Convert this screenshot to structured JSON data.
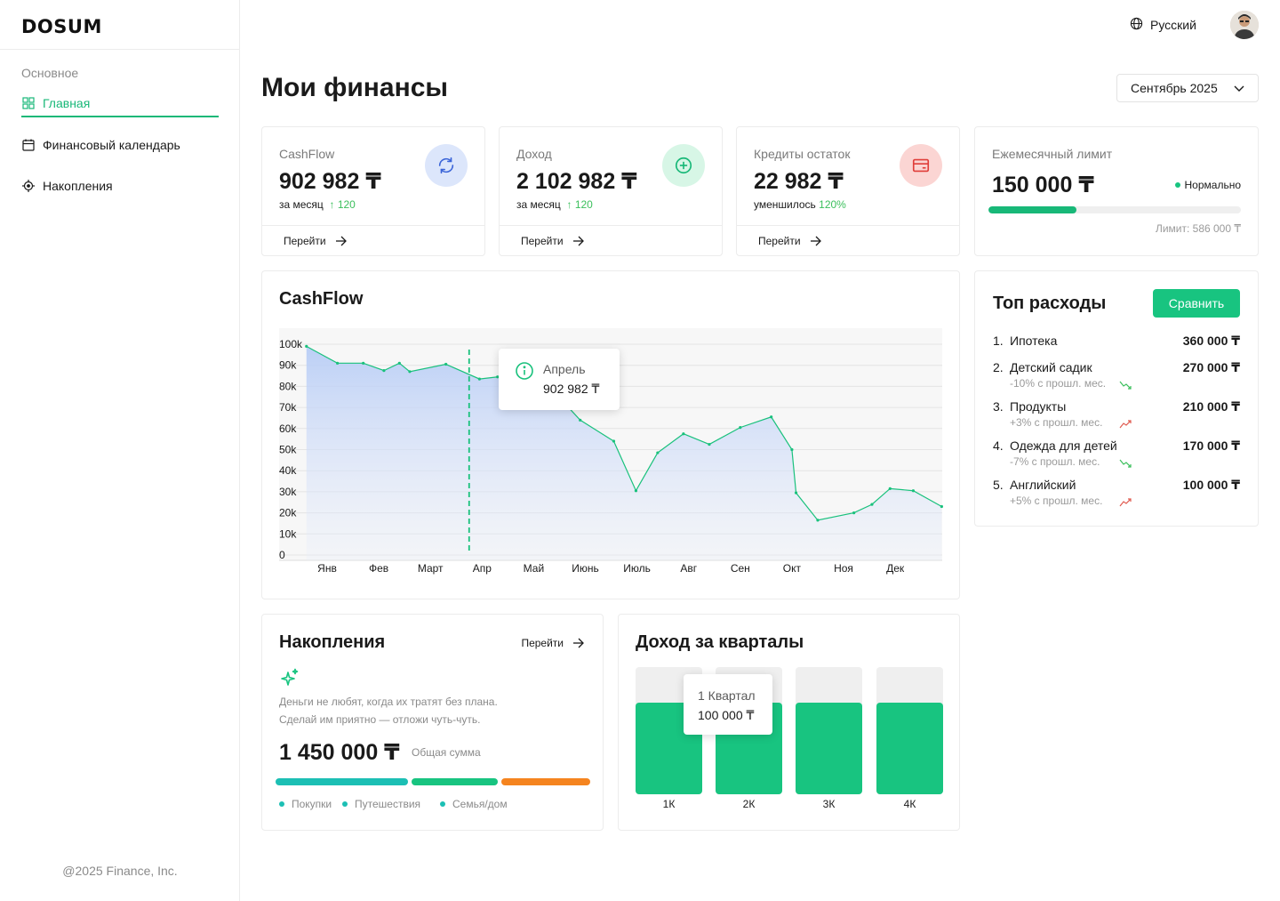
{
  "app": {
    "logo": "DOSUM"
  },
  "sidebar": {
    "section": "Основное",
    "items": [
      {
        "label": "Главная",
        "icon": "grid-icon",
        "active": true
      },
      {
        "label": "Финансовый календарь",
        "icon": "calendar-icon",
        "active": false
      },
      {
        "label": "Накопления",
        "icon": "target-icon",
        "active": false
      }
    ],
    "footer": "@2025 Finance, Inc."
  },
  "topbar": {
    "language": "Русский"
  },
  "page": {
    "title": "Мои финансы",
    "month": "Сентябрь 2025"
  },
  "stats": [
    {
      "label": "CashFlow",
      "value": "902 982 ₸",
      "sub": "за месяц",
      "change": "120",
      "link": "Перейти",
      "icon": "refresh-icon",
      "icon_bg": "#dce6fb",
      "icon_color": "#3a64d8"
    },
    {
      "label": "Доход",
      "value": "2 102 982 ₸",
      "sub": "за месяц",
      "change": "120",
      "link": "Перейти",
      "icon": "plus-circle-icon",
      "icon_bg": "#d7f6e6",
      "icon_color": "#18b878"
    },
    {
      "label": "Кредиты остаток",
      "value": "22 982 ₸",
      "sub": "уменшилось",
      "change": "120%",
      "link": "Перейти",
      "icon": "card-icon",
      "icon_bg": "#fbd5d3",
      "icon_color": "#e03e3a"
    }
  ],
  "limit": {
    "label": "Ежемесячный лимит",
    "value": "150 000 ₸",
    "status": "Нормально",
    "status_color": "#18c480",
    "progress": 0.35,
    "note": "Лимит: 586 000 ₸"
  },
  "cashflow_chart_title": "CashFlow",
  "chart_data": {
    "type": "area",
    "title": "CashFlow",
    "categories": [
      "Янв",
      "Фев",
      "Март",
      "Апр",
      "Май",
      "Июнь",
      "Июль",
      "Авг",
      "Сен",
      "Окт",
      "Ноя",
      "Дек"
    ],
    "y_ticks": [
      "100k",
      "90k",
      "80k",
      "70k",
      "60k",
      "50k",
      "40k",
      "30k",
      "20k",
      "10k",
      "0"
    ],
    "ylim": [
      0,
      100000
    ],
    "x_range": [
      -0.4,
      11.9
    ],
    "points": [
      [
        -0.4,
        99000
      ],
      [
        0.2,
        91000
      ],
      [
        0.7,
        91000
      ],
      [
        1.1,
        87500
      ],
      [
        1.4,
        91000
      ],
      [
        1.6,
        87000
      ],
      [
        2.3,
        90500
      ],
      [
        2.95,
        83500
      ],
      [
        3.3,
        84500
      ],
      [
        3.6,
        82000
      ],
      [
        3.9,
        80000
      ],
      [
        4.3,
        75000
      ],
      [
        4.6,
        72000
      ],
      [
        4.9,
        64000
      ],
      [
        5.55,
        54000
      ],
      [
        5.98,
        30500
      ],
      [
        6.4,
        48500
      ],
      [
        6.9,
        57500
      ],
      [
        7.4,
        52500
      ],
      [
        8.0,
        60500
      ],
      [
        8.6,
        65500
      ],
      [
        9.0,
        50000
      ],
      [
        9.08,
        29500
      ],
      [
        9.5,
        16500
      ],
      [
        10.2,
        20000
      ],
      [
        10.55,
        24000
      ],
      [
        10.9,
        31500
      ],
      [
        11.35,
        30500
      ],
      [
        11.9,
        23000
      ]
    ],
    "highlight": {
      "category": "Апр",
      "label": "Апрель",
      "value": "902 982 ₸"
    },
    "line_color": "#19c17c"
  },
  "top_expenses": {
    "title": "Топ расходы",
    "button": "Сравнить",
    "items": [
      {
        "num": "1.",
        "name": "Ипотека",
        "amount": "360 000 ₸",
        "change": "",
        "trend": ""
      },
      {
        "num": "2.",
        "name": "Детский садик",
        "amount": "270 000 ₸",
        "change": "-10% с прошл. мес.",
        "trend": "down"
      },
      {
        "num": "3.",
        "name": "Продукты",
        "amount": "210 000 ₸",
        "change": "+3% с прошл. мес.",
        "trend": "up"
      },
      {
        "num": "4.",
        "name": "Одежда для детей",
        "amount": "170 000 ₸",
        "change": "-7% с прошл. мес.",
        "trend": "down"
      },
      {
        "num": "5.",
        "name": "Английский",
        "amount": "100 000 ₸",
        "change": "+5% с прошл. мес.",
        "trend": "up"
      }
    ]
  },
  "savings": {
    "title": "Накопления",
    "link": "Перейти",
    "text_line1": "Деньги не любят, когда их тратят без плана.",
    "text_line2": "Сделай им приятно — отложи чуть-чуть.",
    "total": "1 450 000 ₸",
    "total_label": "Общая сумма",
    "categories": [
      {
        "name": "Покупки",
        "color": "#1cbfb4",
        "share": 0.43
      },
      {
        "name": "Путешествия",
        "color": "#18c480",
        "share": 0.28
      },
      {
        "name": "Семья/дом",
        "color": "#f5841f",
        "share": 0.29
      }
    ]
  },
  "quarters": {
    "title": "Доход за кварталы",
    "bars": [
      {
        "label": "1К",
        "value": 0.72
      },
      {
        "label": "2К",
        "value": 0.72
      },
      {
        "label": "3К",
        "value": 0.72
      },
      {
        "label": "4К",
        "value": 0.72
      }
    ],
    "tooltip_title": "1 Квартал",
    "tooltip_value": "100 000 ₸"
  }
}
